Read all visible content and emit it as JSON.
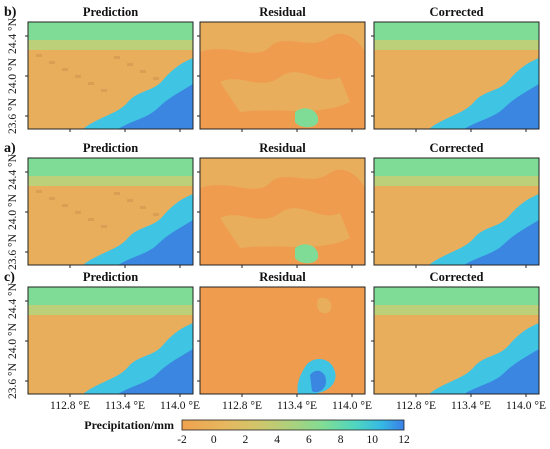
{
  "chart_data": {
    "type": "heatmap",
    "rows": [
      {
        "label": "b)",
        "panels": [
          "Prediction",
          "Residual",
          "Corrected"
        ]
      },
      {
        "label": "a)",
        "panels": [
          "Prediction",
          "Residual",
          "Corrected"
        ]
      },
      {
        "label": "c)",
        "panels": [
          "Prediction",
          "Residual",
          "Corrected"
        ]
      }
    ],
    "y_tick_labels": [
      "24.4 °N",
      "24.0 °N",
      "23.6 °N"
    ],
    "x_tick_labels": [
      "112.8 °E",
      "113.4 °E",
      "114.0 °E"
    ],
    "colorbar": {
      "title": "Precipitation/mm",
      "ticks": [
        "-2",
        "0",
        "2",
        "4",
        "6",
        "8",
        "10",
        "12"
      ],
      "range": [
        -2,
        12
      ],
      "colors": [
        "#f0a24f",
        "#e6b85f",
        "#cfc66c",
        "#aad27e",
        "#7fdc96",
        "#4fd6c0",
        "#36b8e4",
        "#3a7fe6"
      ]
    },
    "colors": {
      "base_orange": "#e8ae5c",
      "deep_orange": "#f09c4f",
      "green": "#7fdc96",
      "cyan": "#3fc4e4",
      "blue": "#3a86e0"
    }
  }
}
